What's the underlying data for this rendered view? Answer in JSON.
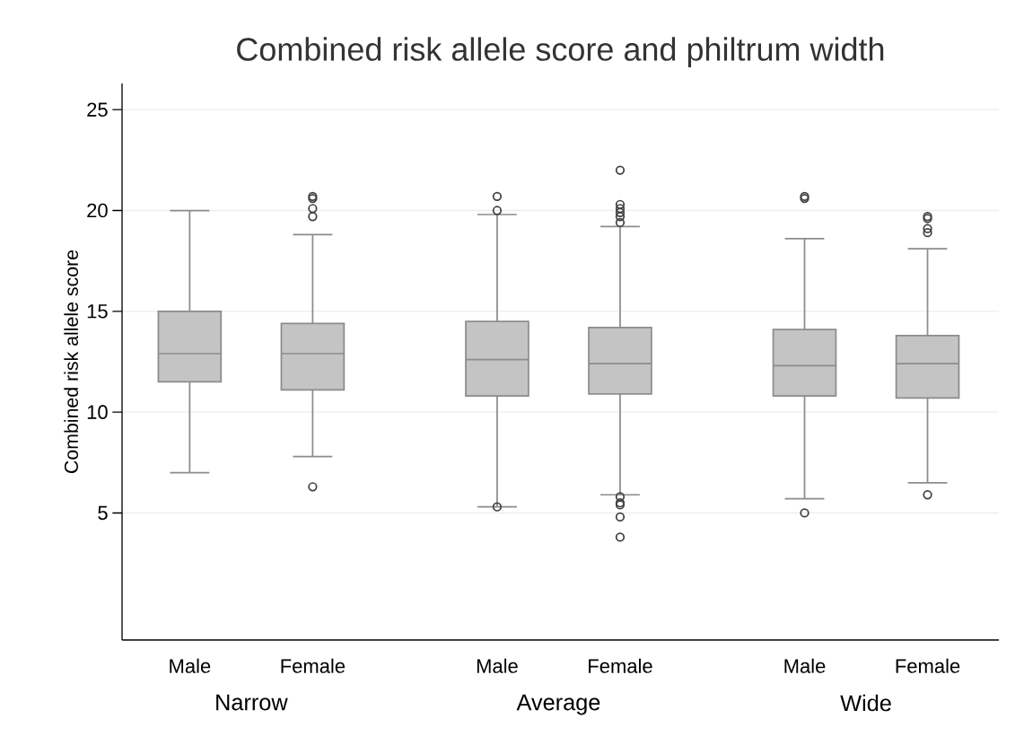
{
  "chart_data": {
    "type": "box",
    "title": "Combined risk allele score and philtrum width",
    "ylabel": "Combined risk allele score",
    "categories": [
      "Male",
      "Female",
      "Male",
      "Female",
      "Male",
      "Female"
    ],
    "color": "#c4c4c4",
    "boxes": [
      {
        "low": 7.0,
        "q1": 11.5,
        "median": 12.9,
        "q3": 15.0,
        "high": 20.0
      },
      {
        "low": 7.8,
        "q1": 11.1,
        "median": 12.9,
        "q3": 14.4,
        "high": 18.8,
        "outliers": [
          20.7,
          20.6,
          20.1,
          19.7,
          6.3
        ]
      },
      {
        "low": 5.3,
        "q1": 10.8,
        "median": 12.6,
        "q3": 14.5,
        "high": 19.8,
        "outliers": [
          20.7,
          20.0,
          5.3
        ]
      },
      {
        "low": 5.9,
        "q1": 10.9,
        "median": 12.4,
        "q3": 14.2,
        "high": 19.2,
        "outliers": [
          22.0,
          20.3,
          20.1,
          19.9,
          19.7,
          19.4,
          5.8,
          5.5,
          5.4,
          4.8,
          3.8
        ]
      },
      {
        "low": 5.7,
        "q1": 10.8,
        "median": 12.3,
        "q3": 14.1,
        "high": 18.6,
        "outliers": [
          20.7,
          20.6,
          5.0
        ]
      },
      {
        "low": 6.5,
        "q1": 10.7,
        "median": 12.4,
        "q3": 13.8,
        "high": 18.1,
        "outliers": [
          19.7,
          19.6,
          19.1,
          18.9,
          5.9
        ]
      }
    ],
    "annotations": [
      "Narrow",
      "Average",
      "Wide"
    ],
    "ylim": [
      -1.3,
      26.3
    ],
    "yticks": [
      5,
      10,
      15,
      20,
      25
    ],
    "grid": "y"
  }
}
